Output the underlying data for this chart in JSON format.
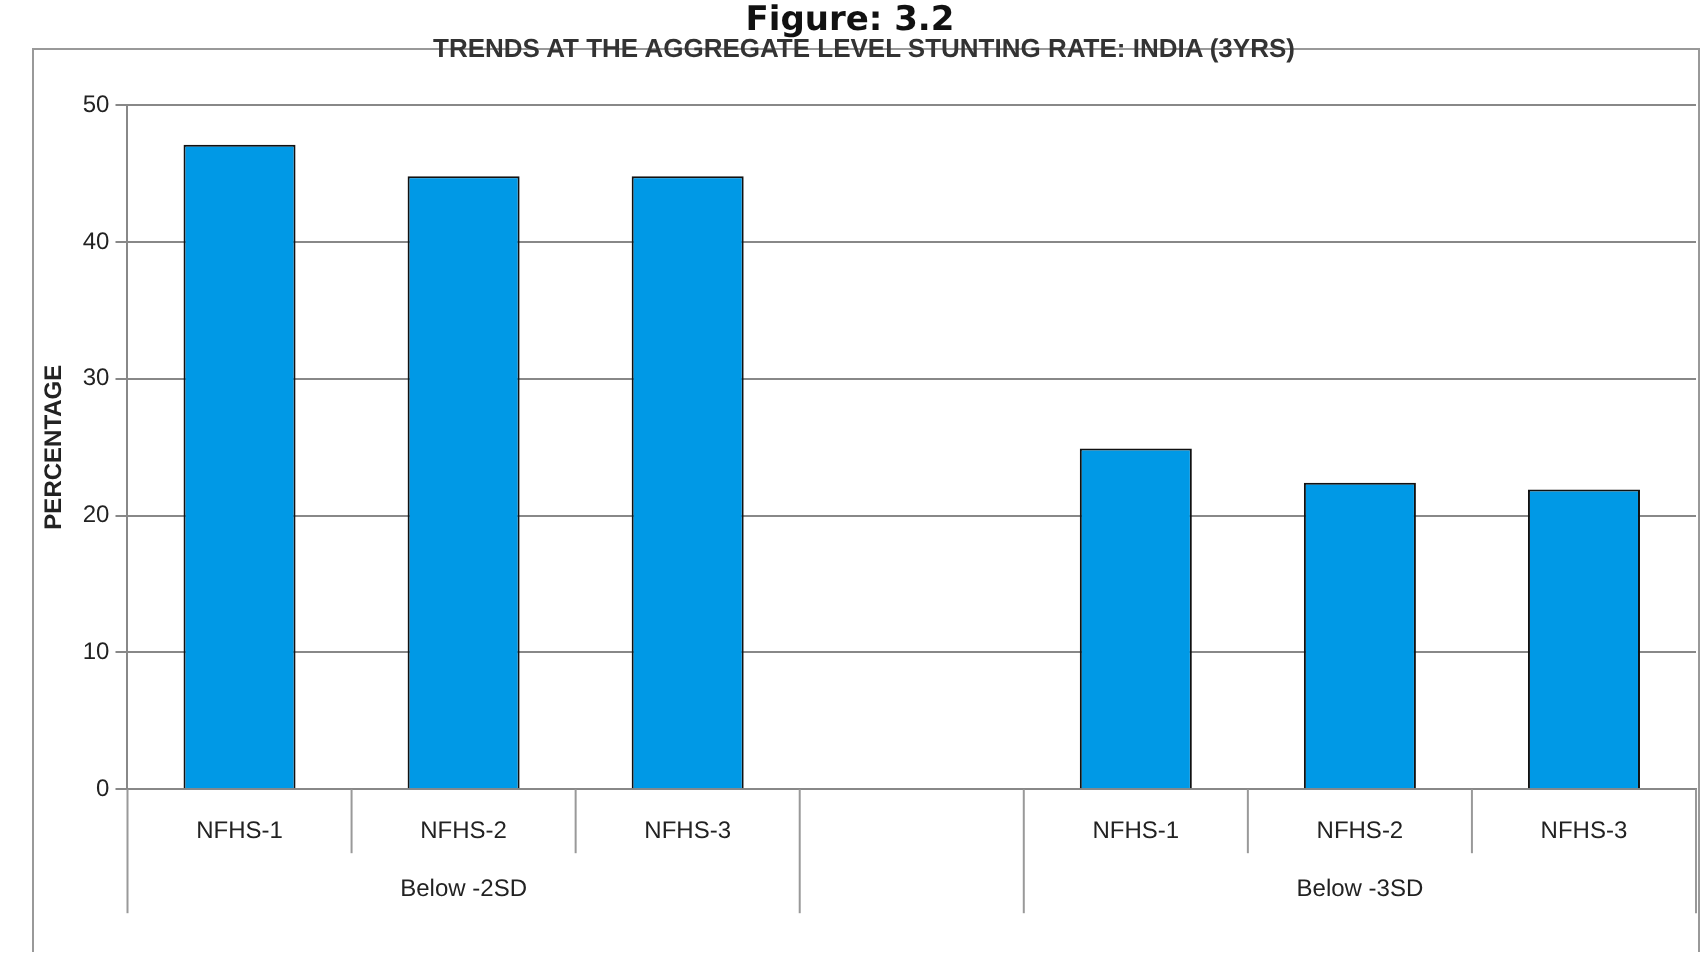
{
  "chart_data": {
    "type": "bar",
    "title": "TRENDS AT THE AGGREGATE LEVEL STUNTING RATE: INDIA (3YRS)",
    "ylabel": "PERCENTAGE",
    "categories": [
      "NFHS-1",
      "NFHS-2",
      "NFHS-3",
      null,
      "NFHS-1",
      "NFHS-2",
      "NFHS-3"
    ],
    "values": [
      47.1,
      44.8,
      44.8,
      null,
      24.9,
      22.4,
      21.9
    ],
    "color": "#0099e6",
    "ylim": [
      0,
      50
    ],
    "yticks": [
      0,
      10,
      20,
      30,
      40,
      50
    ],
    "grid": "y",
    "legend": false,
    "annotations": [
      "Figure: 3.2",
      "Below -2SD",
      "Below -3SD"
    ]
  }
}
